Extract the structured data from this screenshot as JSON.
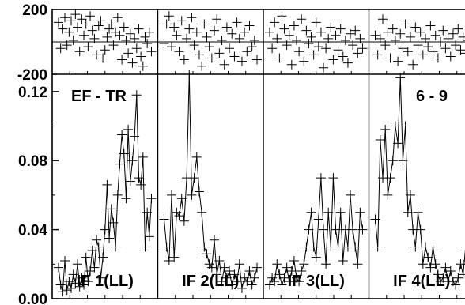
{
  "chart_data": {
    "type": "scatter",
    "title": "",
    "xlabel": "",
    "ylabel": "",
    "annotations": [
      "EF - TR",
      "6 - 9"
    ],
    "phase_axis": {
      "ylim": [
        -200,
        200
      ],
      "ticks": [
        "200",
        "-200"
      ]
    },
    "amp_axis": {
      "ylim": [
        0,
        0.13
      ],
      "ticks": [
        "0.12",
        "0.08",
        "0.04",
        "0.00"
      ]
    },
    "panels": [
      {
        "label": "IF 1(LL)",
        "amp": [
          0.018,
          0.008,
          0.004,
          0.022,
          0.005,
          0.01,
          0.006,
          0.014,
          0.009,
          0.02,
          0.007,
          0.012,
          0.008,
          0.024,
          0.01,
          0.016,
          0.028,
          0.018,
          0.034,
          0.03,
          0.012,
          0.024,
          0.04,
          0.066,
          0.035,
          0.052,
          0.044,
          0.03,
          0.06,
          0.078,
          0.095,
          0.084,
          0.058,
          0.098,
          0.068,
          0.08,
          0.094,
          0.118,
          0.07,
          0.066,
          0.082,
          0.03,
          0.05,
          0.036,
          0.058
        ],
        "phase": [
          120,
          -40,
          80,
          150,
          -20,
          60,
          130,
          10,
          170,
          90,
          -60,
          140,
          40,
          110,
          -30,
          160,
          70,
          20,
          -80,
          100,
          130,
          -100,
          -50,
          30,
          80,
          110,
          -20,
          60,
          150,
          40,
          -110,
          90,
          10,
          -70,
          50,
          -130,
          20,
          -40,
          80,
          -90,
          -150,
          30,
          -10,
          60,
          -60
        ]
      },
      {
        "label": "IF 2(LL)",
        "amp": [
          0.046,
          0.03,
          0.022,
          0.06,
          0.024,
          0.05,
          0.048,
          0.058,
          0.045,
          0.07,
          0.13,
          0.06,
          0.07,
          0.082,
          0.062,
          0.05,
          0.03,
          0.026,
          0.02,
          0.018,
          0.034,
          0.014,
          0.022,
          0.01,
          0.018,
          0.012,
          0.016,
          0.008,
          0.014,
          0.01,
          0.02,
          0.006,
          0.012,
          0.01,
          0.016,
          0.008,
          0.012,
          0.018
        ],
        "phase": [
          -10,
          110,
          160,
          -30,
          90,
          40,
          -60,
          130,
          -110,
          20,
          80,
          150,
          -20,
          60,
          -80,
          -150,
          110,
          30,
          -30,
          -100,
          70,
          140,
          -70,
          10,
          -140,
          90,
          -40,
          50,
          -90,
          120,
          20,
          -120,
          60,
          -60,
          100,
          -30,
          10,
          -110
        ]
      },
      {
        "label": "IF 3(LL)",
        "amp": [
          0.008,
          0.012,
          0.01,
          0.02,
          0.014,
          0.008,
          0.012,
          0.018,
          0.01,
          0.016,
          0.022,
          0.012,
          0.01,
          0.016,
          0.02,
          0.03,
          0.04,
          0.05,
          0.03,
          0.024,
          0.046,
          0.07,
          0.04,
          0.02,
          0.05,
          0.03,
          0.07,
          0.04,
          0.03,
          0.05,
          0.022,
          0.04,
          0.03,
          0.06,
          0.04,
          0.03,
          0.02,
          0.05,
          0.04
        ],
        "phase": [
          60,
          -40,
          120,
          20,
          -100,
          160,
          80,
          -20,
          40,
          -140,
          100,
          10,
          -60,
          140,
          -120,
          70,
          -10,
          30,
          -80,
          120,
          -30,
          60,
          -160,
          -40,
          20,
          90,
          -110,
          40,
          -50,
          80,
          -90,
          10,
          -130,
          50,
          -20,
          70,
          -70,
          20,
          -40
        ]
      },
      {
        "label": "IF 4(LL)",
        "amp": [
          0.046,
          0.03,
          0.092,
          0.07,
          0.098,
          0.06,
          0.07,
          0.08,
          0.1,
          0.09,
          0.128,
          0.08,
          0.1,
          0.05,
          0.06,
          0.04,
          0.03,
          0.05,
          0.04,
          0.02,
          0.03,
          0.024,
          0.018,
          0.03,
          0.02,
          0.014,
          0.01,
          0.012,
          0.018,
          0.01,
          0.016,
          0.01,
          0.008,
          0.012,
          0.02,
          0.014,
          0.03,
          0.022
        ],
        "phase": [
          40,
          -80,
          20,
          140,
          -20,
          60,
          -100,
          80,
          10,
          -120,
          50,
          -40,
          110,
          -60,
          30,
          -140,
          90,
          -20,
          60,
          -80,
          20,
          -30,
          100,
          -60,
          40,
          -100,
          0,
          70,
          -40,
          20,
          -90,
          50,
          -20,
          80,
          -50,
          30,
          -70,
          10
        ]
      }
    ],
    "grid": false,
    "legend": "none"
  }
}
